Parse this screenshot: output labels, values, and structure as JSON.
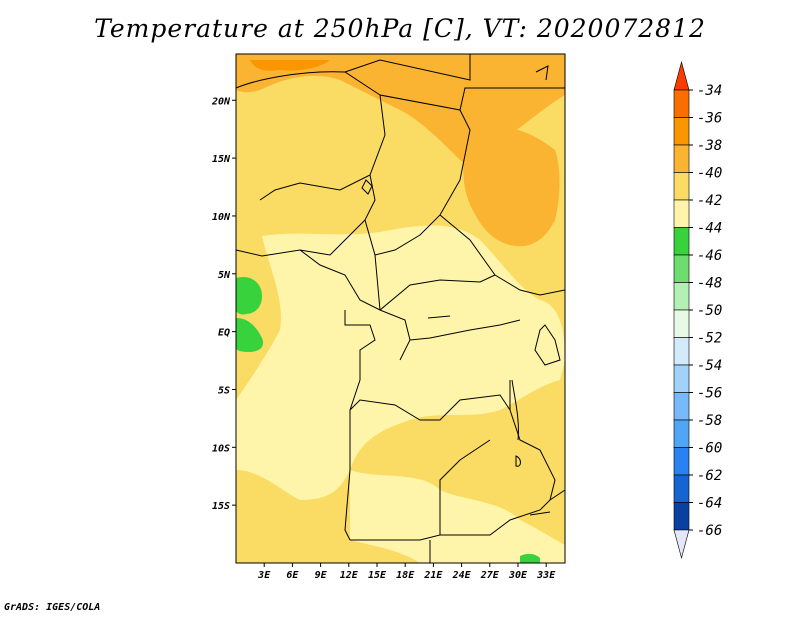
{
  "title": "Temperature at 250hPa [C], VT: 2020072812",
  "footer": "GrADS: IGES/COLA",
  "map": {
    "lon_range": [
      0,
      35
    ],
    "lat_range": [
      -20,
      24
    ],
    "lat_ticks": [
      "20N",
      "15N",
      "10N",
      "5N",
      "EQ",
      "5S",
      "10S",
      "15S"
    ],
    "lat_tick_values": [
      20,
      15,
      10,
      5,
      0,
      -5,
      -10,
      -15
    ],
    "lon_ticks": [
      "3E",
      "6E",
      "9E",
      "12E",
      "15E",
      "18E",
      "21E",
      "24E",
      "27E",
      "30E",
      "33E"
    ],
    "lon_tick_values": [
      3,
      6,
      9,
      12,
      15,
      18,
      21,
      24,
      27,
      30,
      33
    ]
  },
  "colorbar": {
    "labels": [
      "-34",
      "-36",
      "-38",
      "-40",
      "-42",
      "-44",
      "-46",
      "-48",
      "-50",
      "-52",
      "-54",
      "-56",
      "-58",
      "-60",
      "-62",
      "-64",
      "-66"
    ],
    "colors": [
      "#fa3c00",
      "#fa6e00",
      "#fa9600",
      "#fab432",
      "#fadc64",
      "#fff5aa",
      "#37d23c",
      "#6edc6e",
      "#b4f0b4",
      "#e6fae6",
      "#d2ebfa",
      "#a0d2fa",
      "#78b9fa",
      "#50a5f5",
      "#2882f0",
      "#1464d2",
      "#0a41a0"
    ],
    "top_color": "#fa3c00",
    "bottom_color": "#e6e6fa"
  }
}
